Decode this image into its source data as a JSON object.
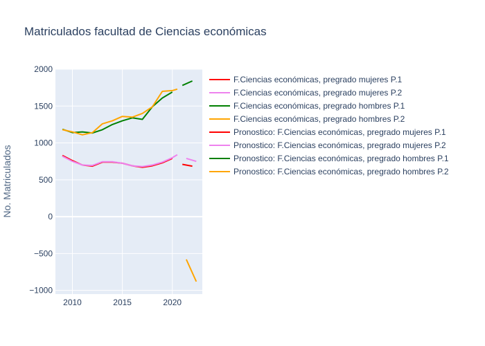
{
  "chart_data": {
    "type": "line",
    "title": "Matriculados facultad de Ciencias económicas",
    "xlabel": "",
    "ylabel": "No. Matriculados",
    "xlim": [
      2008.3,
      2023.0
    ],
    "ylim": [
      -1050,
      2000
    ],
    "x_ticks": [
      2010,
      2015,
      2020
    ],
    "y_ticks": [
      -1000,
      -500,
      0,
      500,
      1000,
      1500,
      2000
    ],
    "y_tick_labels": [
      "−1000",
      "−500",
      "0",
      "500",
      "1000",
      "1500",
      "2000"
    ],
    "grid": true,
    "legend_position": "right",
    "series": [
      {
        "name": "F.Ciencias económicas, pregrado mujeres P.1",
        "color": "#ff0000",
        "x": [
          2009,
          2010,
          2011,
          2012,
          2013,
          2014,
          2015,
          2016,
          2017,
          2018,
          2019,
          2020
        ],
        "y": [
          830,
          760,
          700,
          685,
          740,
          740,
          725,
          690,
          670,
          690,
          730,
          790
        ]
      },
      {
        "name": "F.Ciencias económicas, pregrado mujeres P.2",
        "color": "#ee82ee",
        "x": [
          2009,
          2010,
          2011,
          2012,
          2013,
          2014,
          2015,
          2016,
          2017,
          2018,
          2019,
          2020,
          2020.5
        ],
        "y": [
          820,
          750,
          700,
          695,
          745,
          745,
          725,
          690,
          680,
          700,
          740,
          800,
          840
        ]
      },
      {
        "name": "F.Ciencias económicas, pregrado hombres P.1",
        "color": "#008000",
        "x": [
          2009,
          2010,
          2011,
          2012,
          2013,
          2014,
          2015,
          2016,
          2017,
          2018,
          2019,
          2020
        ],
        "y": [
          1185,
          1140,
          1150,
          1135,
          1180,
          1250,
          1300,
          1340,
          1320,
          1490,
          1610,
          1690
        ]
      },
      {
        "name": "F.Ciencias económicas, pregrado hombres P.2",
        "color": "#ffa500",
        "x": [
          2009,
          2010,
          2011,
          2012,
          2013,
          2014,
          2015,
          2016,
          2017,
          2018,
          2019,
          2020,
          2020.5
        ],
        "y": [
          1180,
          1150,
          1110,
          1140,
          1260,
          1300,
          1360,
          1350,
          1400,
          1490,
          1700,
          1710,
          1730
        ]
      },
      {
        "name": "Pronostico: F.Ciencias económicas, pregrado mujeres P.1",
        "color": "#ff0000",
        "x": [
          2021,
          2022
        ],
        "y": [
          710,
          685
        ]
      },
      {
        "name": "Pronostico: F.Ciencias económicas, pregrado mujeres P.2",
        "color": "#ee82ee",
        "x": [
          2021.4,
          2022.4
        ],
        "y": [
          790,
          750
        ]
      },
      {
        "name": "Pronostico: F.Ciencias económicas, pregrado hombres P.1",
        "color": "#008000",
        "x": [
          2021,
          2022
        ],
        "y": [
          1780,
          1840
        ]
      },
      {
        "name": "Pronostico: F.Ciencias económicas, pregrado hombres P.2",
        "color": "#ffa500",
        "x": [
          2021.4,
          2022.4
        ],
        "y": [
          -580,
          -880
        ]
      }
    ]
  }
}
